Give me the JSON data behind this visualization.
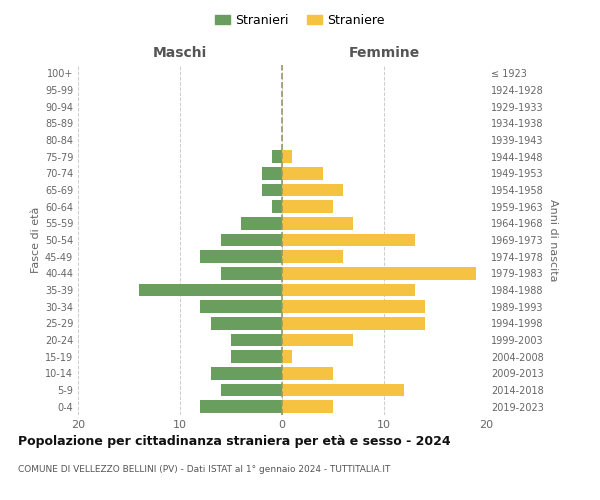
{
  "age_groups": [
    "100+",
    "95-99",
    "90-94",
    "85-89",
    "80-84",
    "75-79",
    "70-74",
    "65-69",
    "60-64",
    "55-59",
    "50-54",
    "45-49",
    "40-44",
    "35-39",
    "30-34",
    "25-29",
    "20-24",
    "15-19",
    "10-14",
    "5-9",
    "0-4"
  ],
  "birth_years": [
    "≤ 1923",
    "1924-1928",
    "1929-1933",
    "1934-1938",
    "1939-1943",
    "1944-1948",
    "1949-1953",
    "1954-1958",
    "1959-1963",
    "1964-1968",
    "1969-1973",
    "1974-1978",
    "1979-1983",
    "1984-1988",
    "1989-1993",
    "1994-1998",
    "1999-2003",
    "2004-2008",
    "2009-2013",
    "2014-2018",
    "2019-2023"
  ],
  "maschi": [
    0,
    0,
    0,
    0,
    0,
    1,
    2,
    2,
    1,
    4,
    6,
    8,
    6,
    14,
    8,
    7,
    5,
    5,
    7,
    6,
    8
  ],
  "femmine": [
    0,
    0,
    0,
    0,
    0,
    1,
    4,
    6,
    5,
    7,
    13,
    6,
    19,
    13,
    14,
    14,
    7,
    1,
    5,
    12,
    5
  ],
  "maschi_color": "#6a9e5e",
  "femmine_color": "#f5c242",
  "grid_color": "#cccccc",
  "center_line_color": "#999966",
  "title": "Popolazione per cittadinanza straniera per età e sesso - 2024",
  "subtitle": "COMUNE DI VELLEZZO BELLINI (PV) - Dati ISTAT al 1° gennaio 2024 - TUTTITALIA.IT",
  "left_header": "Maschi",
  "right_header": "Femmine",
  "ylabel": "Fasce di età",
  "right_ylabel": "Anni di nascita",
  "legend_stranieri": "Stranieri",
  "legend_straniere": "Straniere",
  "xlim": 20,
  "bar_height": 0.75
}
